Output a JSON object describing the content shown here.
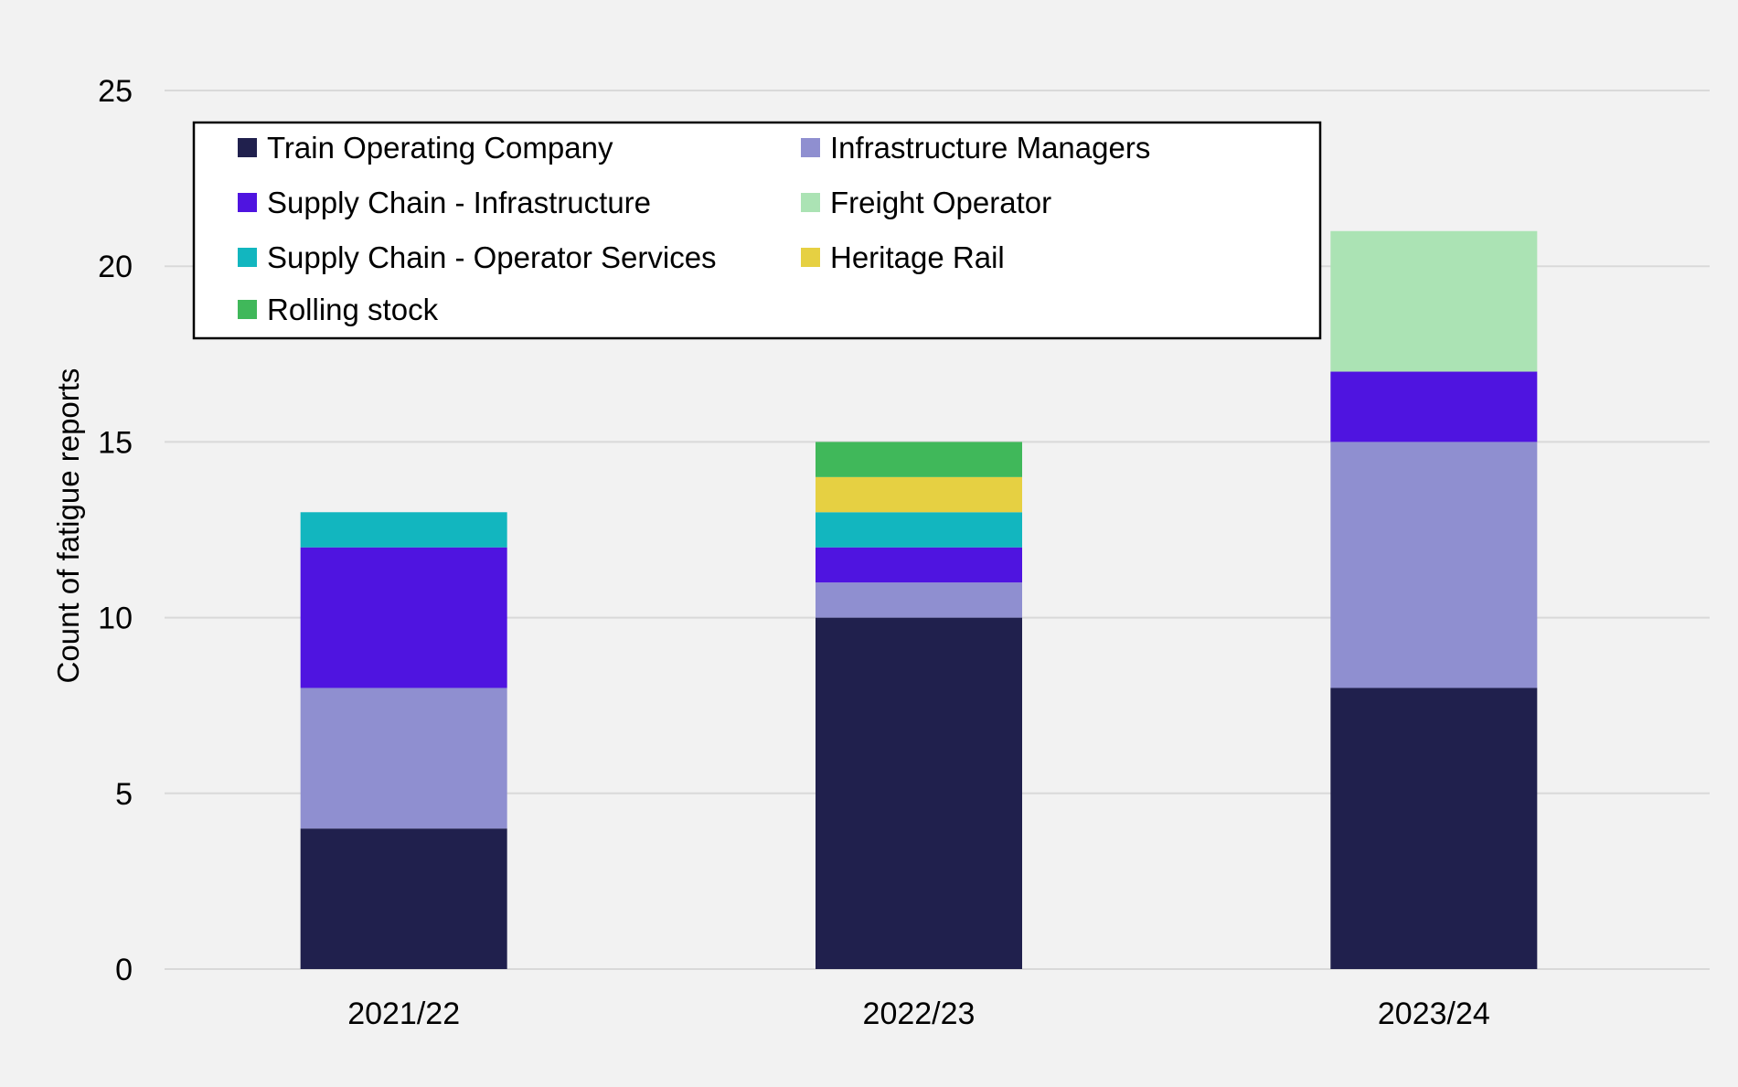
{
  "chart_data": {
    "type": "bar",
    "stacked": true,
    "categories": [
      "2021/22",
      "2022/23",
      "2023/24"
    ],
    "ylabel": "Count of fatigue reports",
    "xlabel": "",
    "ylim": [
      0,
      25
    ],
    "yticks": [
      0,
      5,
      10,
      15,
      20,
      25
    ],
    "grid": true,
    "legend_position": "top-left",
    "series": [
      {
        "name": "Train Operating Company",
        "color": "#20204d",
        "values": [
          4,
          10,
          8
        ]
      },
      {
        "name": "Infrastructure Managers",
        "color": "#8f8fd0",
        "values": [
          4,
          1,
          7
        ]
      },
      {
        "name": "Supply Chain - Infrastructure",
        "color": "#4f14e0",
        "values": [
          4,
          1,
          2
        ]
      },
      {
        "name": "Supply Chain - Operator Services",
        "color": "#12b6bf",
        "values": [
          1,
          1,
          0
        ]
      },
      {
        "name": "Heritage Rail",
        "color": "#e6d042",
        "values": [
          0,
          1,
          0
        ]
      },
      {
        "name": "Rolling stock",
        "color": "#40b85a",
        "values": [
          0,
          1,
          0
        ]
      },
      {
        "name": "Freight Operator",
        "color": "#abe3b4",
        "values": [
          0,
          0,
          4
        ]
      }
    ],
    "legend_order": [
      "Train Operating Company",
      "Infrastructure Managers",
      "Supply Chain - Infrastructure",
      "Freight Operator",
      "Supply Chain - Operator Services",
      "Heritage Rail",
      "Rolling stock"
    ]
  }
}
